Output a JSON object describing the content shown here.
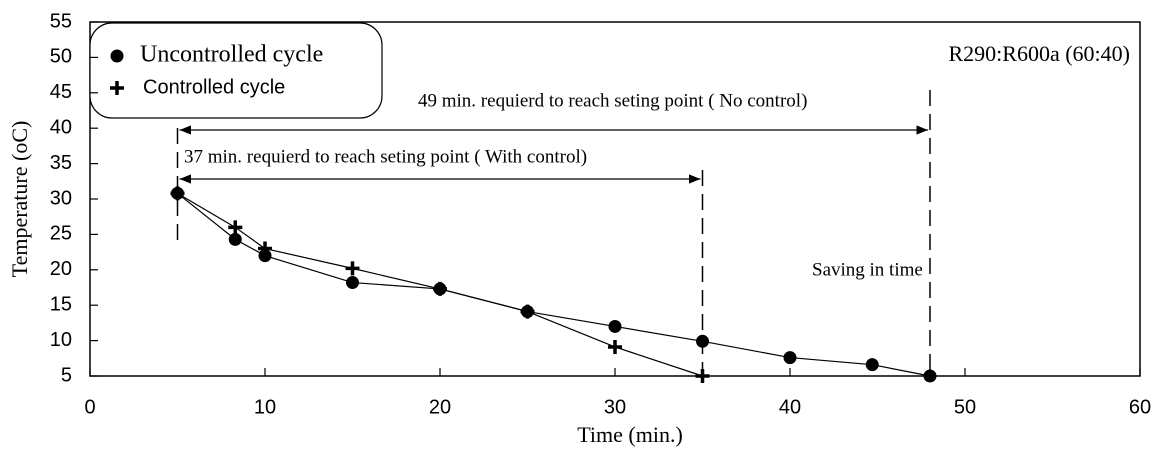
{
  "chart_data": {
    "type": "line",
    "xlabel": "Time (min.)",
    "ylabel": "Temperature (oC)",
    "xlim": [
      0,
      60
    ],
    "xticks": [
      0,
      10,
      20,
      30,
      40,
      50,
      60
    ],
    "ylim": [
      5,
      55
    ],
    "yticks": [
      5,
      10,
      15,
      20,
      25,
      30,
      35,
      40,
      45,
      50,
      55
    ],
    "series": [
      {
        "name": "Uncontrolled cycle",
        "marker": "circle",
        "color": "#000000",
        "x": [
          5,
          8.3,
          10,
          15,
          20,
          25,
          30,
          35,
          40,
          44.7,
          48
        ],
        "values": [
          30.8,
          24.3,
          22,
          18.2,
          17.3,
          14.1,
          12,
          9.9,
          7.6,
          6.6,
          5
        ]
      },
      {
        "name": "Controlled cycle",
        "marker": "plus",
        "color": "#000000",
        "x": [
          5,
          8.3,
          10,
          15,
          20,
          25,
          30,
          35
        ],
        "values": [
          30.8,
          26,
          23,
          20.2,
          17.3,
          14.1,
          9.1,
          5
        ]
      }
    ],
    "annotations": [
      "R290:R600a (60:40)",
      "49 min. requierd to reach seting point ( No control)",
      "37 min. requierd to reach seting point ( With control)",
      "Saving in time"
    ]
  }
}
